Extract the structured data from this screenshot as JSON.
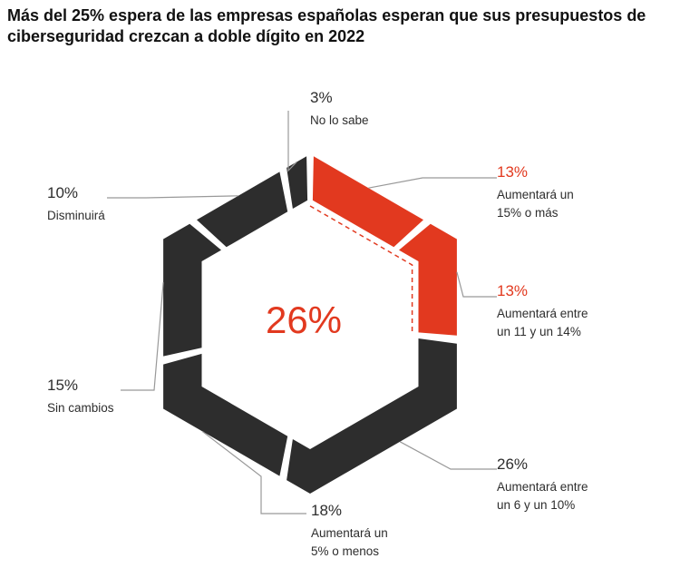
{
  "title": "Más del 25% espera de las empresas españolas esperan que sus presupuestos de ciberseguridad crezcan a doble dígito en 2022",
  "colors": {
    "highlight": "#e2391f",
    "neutral": "#2d2d2d"
  },
  "chart_data": {
    "type": "pie",
    "center_label": "26%",
    "slices": [
      {
        "value": 13,
        "value_label": "13%",
        "label_lines": [
          "Aumentará un",
          "15% o más"
        ],
        "highlight": true
      },
      {
        "value": 13,
        "value_label": "13%",
        "label_lines": [
          "Aumentará entre",
          "un 11 y un 14%"
        ],
        "highlight": true
      },
      {
        "value": 26,
        "value_label": "26%",
        "label_lines": [
          "Aumentará entre",
          "un 6 y un 10%"
        ],
        "highlight": false
      },
      {
        "value": 18,
        "value_label": "18%",
        "label_lines": [
          "Aumentará un",
          "5% o menos"
        ],
        "highlight": false
      },
      {
        "value": 15,
        "value_label": "15%",
        "label_lines": [
          "Sin cambios"
        ],
        "highlight": false
      },
      {
        "value": 10,
        "value_label": "10%",
        "label_lines": [
          "Disminuirá"
        ],
        "highlight": false
      },
      {
        "value": 3,
        "value_label": "3%",
        "label_lines": [
          "No lo sabe"
        ],
        "highlight": false
      }
    ]
  }
}
